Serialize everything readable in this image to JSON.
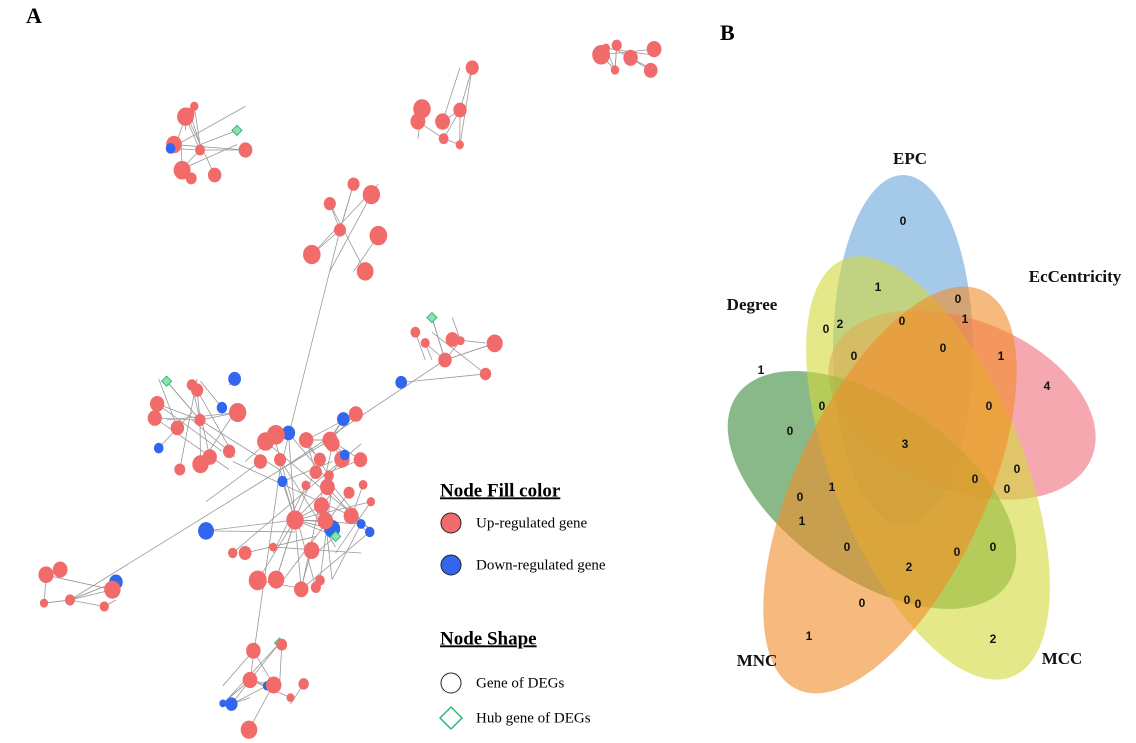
{
  "panels": {
    "a": "A",
    "b": "B"
  },
  "legend": {
    "fill_title": "Node Fill color",
    "up": "Up-regulated gene",
    "down": "Down-regulated gene",
    "shape_title": "Node Shape",
    "gene": "Gene of DEGs",
    "hub": "Hub gene of DEGs"
  },
  "venn": {
    "sets": [
      "EPC",
      "EcCentricity",
      "Degree",
      "MNC",
      "MCC"
    ],
    "regions": [
      0,
      1,
      0,
      1,
      2,
      0,
      0,
      0,
      0,
      1,
      4,
      1,
      0,
      0,
      0,
      3,
      0,
      0,
      0,
      1,
      0,
      1,
      0,
      0,
      0,
      2,
      0,
      0,
      0,
      1,
      2
    ]
  }
}
